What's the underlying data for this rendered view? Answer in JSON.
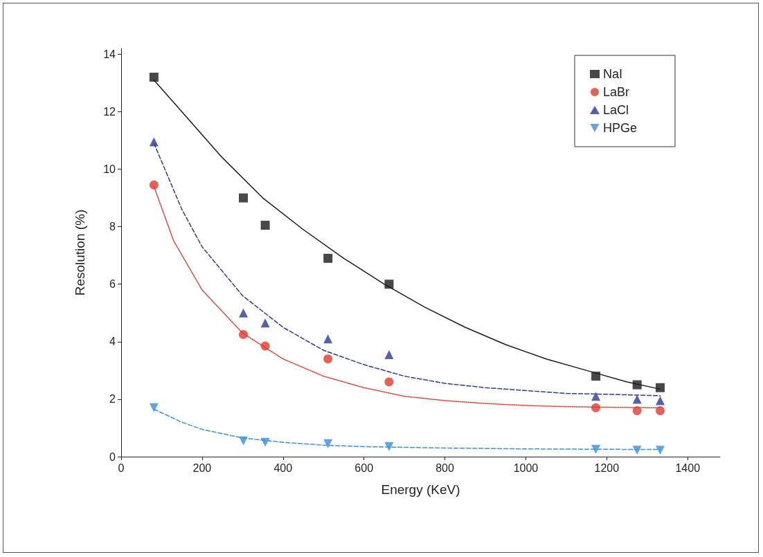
{
  "chart_data": {
    "type": "scatter",
    "xlabel": "Energy (KeV)",
    "ylabel": "Resolution (%)",
    "xlim": [
      0,
      1480
    ],
    "xticks": [
      0,
      200,
      400,
      600,
      800,
      1000,
      1200,
      1400
    ],
    "ylim": [
      0,
      14.2
    ],
    "yticks": [
      0,
      2,
      4,
      6,
      8,
      10,
      12,
      14
    ],
    "grid": false,
    "legend": "top right",
    "series": [
      {
        "name": "NaI",
        "type": "scatter",
        "marker": "square",
        "color": "#1a1a1a",
        "x": [
          81,
          302,
          356,
          511,
          662,
          1173,
          1275,
          1332
        ],
        "values": [
          13.2,
          9.0,
          8.05,
          6.9,
          6.0,
          2.8,
          2.5,
          2.4
        ]
      },
      {
        "name": "LaBr",
        "type": "scatter",
        "marker": "circle",
        "color": "#e03a2e",
        "x": [
          81,
          302,
          356,
          511,
          662,
          1173,
          1275,
          1332
        ],
        "values": [
          9.45,
          4.25,
          3.85,
          3.4,
          2.6,
          1.7,
          1.6,
          1.6
        ]
      },
      {
        "name": "LaCl",
        "type": "scatter",
        "marker": "triangle",
        "color": "#2b3a94",
        "x": [
          81,
          302,
          356,
          511,
          662,
          1173,
          1275,
          1332
        ],
        "values": [
          10.95,
          5.0,
          4.65,
          4.1,
          3.55,
          2.1,
          2.0,
          1.95
        ]
      },
      {
        "name": "HPGe",
        "type": "scatter",
        "marker": "triangle-down",
        "color": "#3a8fd8",
        "x": [
          81,
          302,
          356,
          511,
          662,
          1173,
          1275,
          1332
        ],
        "values": [
          1.7,
          0.55,
          0.5,
          0.45,
          0.35,
          0.25,
          0.22,
          0.22
        ]
      },
      {
        "type": "line",
        "marker": "none",
        "line_style": "solid",
        "color": "#1a1a1a",
        "x": [
          81,
          150,
          250,
          350,
          450,
          550,
          650,
          750,
          850,
          950,
          1050,
          1150,
          1250,
          1332
        ],
        "values": [
          13.1,
          12.0,
          10.4,
          9.0,
          7.9,
          6.9,
          6.0,
          5.2,
          4.5,
          3.9,
          3.4,
          3.0,
          2.6,
          2.35
        ]
      },
      {
        "type": "line",
        "marker": "none",
        "line_style": "dotted",
        "color": "#e03a2e",
        "x": [
          81,
          130,
          200,
          300,
          400,
          500,
          600,
          700,
          800,
          900,
          1000,
          1100,
          1200,
          1332
        ],
        "values": [
          9.4,
          7.5,
          5.8,
          4.3,
          3.4,
          2.8,
          2.4,
          2.1,
          1.95,
          1.85,
          1.78,
          1.74,
          1.72,
          1.7
        ]
      },
      {
        "type": "line",
        "marker": "none",
        "line_style": "dashed",
        "color": "#2b3a94",
        "x": [
          81,
          150,
          200,
          300,
          400,
          500,
          600,
          700,
          800,
          900,
          1000,
          1100,
          1200,
          1332
        ],
        "values": [
          10.9,
          8.6,
          7.3,
          5.6,
          4.5,
          3.7,
          3.2,
          2.8,
          2.55,
          2.4,
          2.3,
          2.2,
          2.17,
          2.12
        ]
      },
      {
        "type": "line",
        "marker": "none",
        "line_style": "dashed",
        "color": "#3a8fd8",
        "x": [
          81,
          150,
          200,
          300,
          400,
          500,
          600,
          800,
          1000,
          1332
        ],
        "values": [
          1.65,
          1.2,
          0.95,
          0.65,
          0.5,
          0.4,
          0.35,
          0.3,
          0.27,
          0.25
        ]
      }
    ]
  }
}
